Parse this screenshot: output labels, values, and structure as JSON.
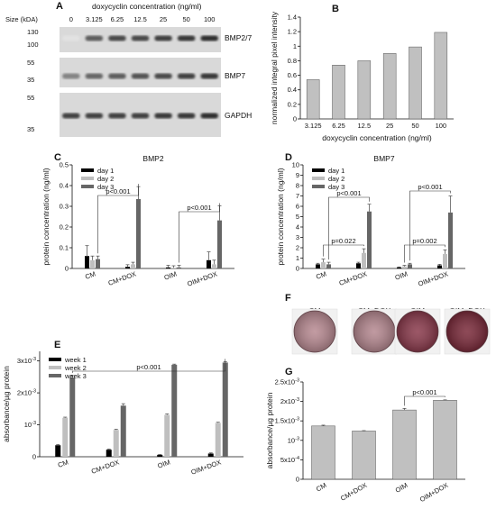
{
  "panel_letters": {
    "a": "A",
    "b": "B",
    "c": "C",
    "d": "D",
    "e": "E",
    "f": "F",
    "g": "G"
  },
  "colors": {
    "black": "#000000",
    "light": "#bfbfbf",
    "dark": "#666666",
    "barG": "#c0c0c0"
  },
  "blot": {
    "size_label": "Size (kDA)",
    "dox_label": "doxycyclin concentration (ng/ml)",
    "lanes": [
      "0",
      "3.125",
      "6.25",
      "12.5",
      "25",
      "50",
      "100"
    ],
    "rows": [
      {
        "markers": [
          "130",
          "100"
        ],
        "label": "BMP2/7",
        "intensity": [
          0.05,
          0.75,
          0.85,
          0.85,
          0.9,
          0.95,
          1.0
        ]
      },
      {
        "markers": [
          "55",
          "35"
        ],
        "label": "BMP7",
        "intensity": [
          0.55,
          0.7,
          0.75,
          0.8,
          0.85,
          0.9,
          0.95
        ]
      },
      {
        "markers": [
          "55",
          "35"
        ],
        "label": "GAPDH",
        "intensity": [
          0.9,
          0.9,
          0.9,
          0.9,
          0.95,
          0.95,
          1.0
        ]
      }
    ]
  },
  "chart_data": [
    {
      "id": "B",
      "type": "bar",
      "categories": [
        "3.125",
        "6.25",
        "12.5",
        "25",
        "50",
        "100"
      ],
      "values": [
        0.54,
        0.74,
        0.8,
        0.9,
        0.99,
        1.19
      ],
      "ylabel": "normalized integral pixel intensity",
      "xlabel": "doxycyclin concentration (ng/ml)",
      "ylim": [
        0,
        1.4
      ],
      "yticks": [
        "0",
        "0.2",
        "0.4",
        "0.6",
        "0.8",
        "1",
        "1.2",
        "1.4"
      ]
    },
    {
      "id": "C",
      "type": "bar",
      "title": "BMP2",
      "categories": [
        "CM",
        "CM+DOX",
        "OIM",
        "OIM+DOX"
      ],
      "series": [
        {
          "name": "day 1",
          "values": [
            0.06,
            0.008,
            0.005,
            0.04
          ],
          "errors": [
            0.05,
            0.01,
            0.01,
            0.04
          ]
        },
        {
          "name": "day 2",
          "values": [
            0.04,
            0.02,
            0.003,
            0.02
          ],
          "errors": [
            0.02,
            0.01,
            0.01,
            0.02
          ]
        },
        {
          "name": "day 3",
          "values": [
            0.045,
            0.335,
            0.005,
            0.232
          ],
          "errors": [
            0.015,
            0.06,
            0.01,
            0.07
          ]
        }
      ],
      "ylabel": "protein concentration (ng/ml)",
      "ylim": [
        0,
        0.5
      ],
      "yticks": [
        "0",
        "0.1",
        "0.2",
        "0.3",
        "0.4",
        "0.5"
      ],
      "annotations": [
        "p<0.001",
        "p<0.001"
      ]
    },
    {
      "id": "D",
      "type": "bar",
      "title": "BMP7",
      "categories": [
        "CM",
        "CM+DOX",
        "OIM",
        "OIM+DOX"
      ],
      "series": [
        {
          "name": "day 1",
          "values": [
            0.4,
            0.5,
            0.1,
            0.3
          ],
          "errors": [
            0.1,
            0.1,
            0.05,
            0.1
          ]
        },
        {
          "name": "day 2",
          "values": [
            0.6,
            1.5,
            0.2,
            1.4
          ],
          "errors": [
            0.3,
            0.4,
            0.1,
            0.4
          ]
        },
        {
          "name": "day 3",
          "values": [
            0.4,
            5.5,
            0.4,
            5.4
          ],
          "errors": [
            0.2,
            0.7,
            0.1,
            1.6
          ]
        }
      ],
      "ylabel": "protein concentration (ng/ml)",
      "ylim": [
        0,
        10
      ],
      "yticks": [
        "0",
        "1",
        "2",
        "3",
        "4",
        "5",
        "6",
        "7",
        "8",
        "9",
        "10"
      ],
      "annotations": [
        "p=0.022",
        "p<0.001",
        "p=0.002",
        "p<0.001"
      ]
    },
    {
      "id": "E",
      "type": "bar",
      "categories": [
        "CM",
        "CM+DOX",
        "OIM",
        "OIM+DOX"
      ],
      "series": [
        {
          "name": "week 1",
          "values": [
            0.36,
            0.22,
            0.06,
            0.1
          ],
          "errors": [
            0.02,
            0.02,
            0.01,
            0.02
          ]
        },
        {
          "name": "week 2",
          "values": [
            1.22,
            0.84,
            1.31,
            1.06
          ],
          "errors": [
            0.02,
            0.02,
            0.03,
            0.02
          ]
        },
        {
          "name": "week 3",
          "values": [
            2.48,
            1.6,
            2.88,
            2.95
          ],
          "errors": [
            0.06,
            0.06,
            0.02,
            0.03
          ]
        }
      ],
      "ylabel": "absorbance/µg protein",
      "ylim": [
        0,
        3.3
      ],
      "yticks": [
        {
          "v": 0,
          "t": "0"
        },
        {
          "v": 1,
          "t": "10"
        },
        {
          "v": 2,
          "t": "2x10"
        },
        {
          "v": 3,
          "t": "3x10"
        }
      ],
      "tick_exp": "-3",
      "annotations": [
        "p<0.001"
      ]
    },
    {
      "id": "G",
      "type": "bar",
      "categories": [
        "CM",
        "CM+DOX",
        "OIM",
        "OIM+DOX"
      ],
      "values": [
        1.37,
        1.24,
        1.78,
        2.03
      ],
      "errors": [
        0.02,
        0.01,
        0.04,
        0.01
      ],
      "ylabel": "absorbance/µg protein",
      "ylim": [
        0,
        2.5
      ],
      "yticks": [
        {
          "v": 0,
          "t": "0"
        },
        {
          "v": 0.5,
          "t": "5x10"
        },
        {
          "v": 1,
          "t": "10"
        },
        {
          "v": 1.5,
          "t": "1.5x10"
        },
        {
          "v": 2,
          "t": "2x10"
        },
        {
          "v": 2.5,
          "t": "2.5x10"
        }
      ],
      "tick_exps": [
        "",
        "-4",
        "-3",
        "-3",
        "-3",
        "-3"
      ],
      "annotations": [
        "p<0.001"
      ]
    }
  ],
  "wells": {
    "labels": [
      "CM",
      "CM+DOX",
      "OIM",
      "OIM+DOX"
    ],
    "colors": [
      "#b88a92",
      "#b58890",
      "#8a3a4c",
      "#7a2a3a"
    ]
  }
}
